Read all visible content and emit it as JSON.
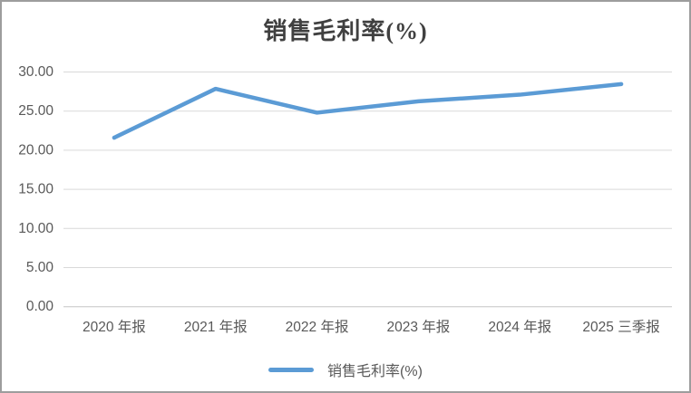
{
  "chart_data": {
    "type": "line",
    "title": "销售毛利率(%)",
    "categories": [
      "2020 年报",
      "2021 年报",
      "2022 年报",
      "2023 年报",
      "2024 年报",
      "2025 三季报"
    ],
    "series": [
      {
        "name": "销售毛利率(%)",
        "values": [
          21.6,
          27.85,
          24.8,
          26.25,
          27.1,
          28.45
        ]
      }
    ],
    "xlabel": "",
    "ylabel": "",
    "ylim": [
      0,
      30
    ],
    "ytick_step": 5,
    "ytick_labels": [
      "0.00",
      "5.00",
      "10.00",
      "15.00",
      "20.00",
      "25.00",
      "30.00"
    ],
    "grid": true,
    "legend_position": "bottom",
    "colors": {
      "line": "#5B9BD5",
      "gridline": "#D9D9D9",
      "axis_line": "#C6C6C6",
      "tick_text": "#595959",
      "title_text": "#404040"
    }
  }
}
